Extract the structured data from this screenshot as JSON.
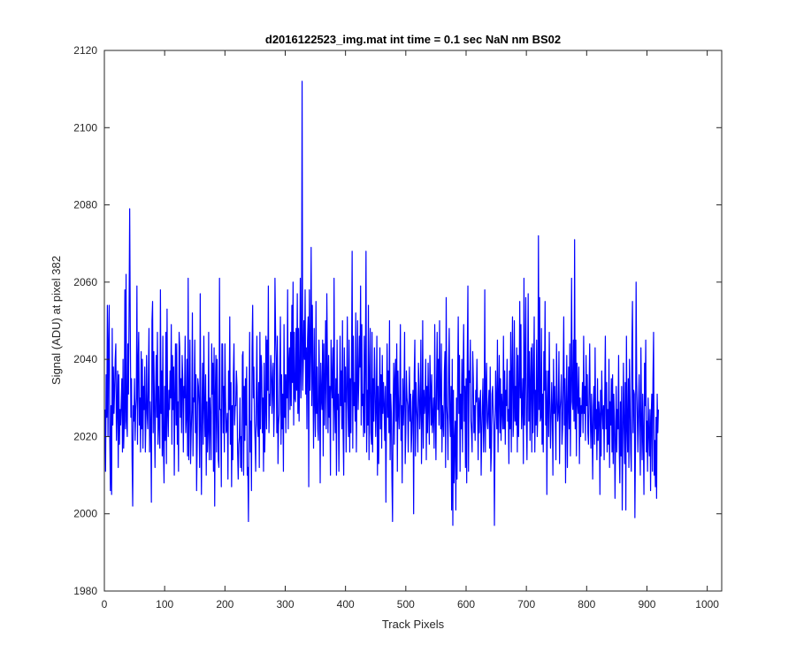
{
  "chart_data": {
    "type": "line",
    "title": "d2016122523_img.mat int time = 0.1 sec  NaN nm BS02",
    "xlabel": "Track Pixels",
    "ylabel": "Signal (ADU) at pixel 382",
    "xlim": [
      0,
      1024
    ],
    "ylim": [
      1980,
      2120
    ],
    "xticks": [
      "0",
      "100",
      "200",
      "300",
      "400",
      "500",
      "600",
      "700",
      "800",
      "900",
      "1000"
    ],
    "yticks": [
      "1980",
      "2000",
      "2020",
      "2040",
      "2060",
      "2080",
      "2100",
      "2120"
    ],
    "grid": false,
    "series": [
      {
        "color": "#0000ff",
        "x_start": 1,
        "x_step": 1,
        "values": [
          2027,
          2011,
          2036,
          2025,
          2054,
          2020,
          2044,
          2054,
          2019,
          2006,
          2028,
          2005,
          2048,
          2023,
          2038,
          2026,
          2032,
          2040,
          2044,
          2019,
          2027,
          2037,
          2012,
          2036,
          2018,
          2027,
          2023,
          2029,
          2035,
          2016,
          2040,
          2017,
          2024,
          2058,
          2022,
          2062,
          2024,
          2020,
          2044,
          2031,
          2053,
          2079,
          2048,
          2025,
          2035,
          2014,
          2002,
          2028,
          2024,
          2035,
          2019,
          2027,
          2030,
          2059,
          2018,
          2039,
          2047,
          2023,
          2030,
          2016,
          2042,
          2022,
          2040,
          2017,
          2033,
          2027,
          2038,
          2016,
          2025,
          2041,
          2026,
          2022,
          2035,
          2048,
          2016,
          2029,
          2022,
          2003,
          2050,
          2055,
          2021,
          2042,
          2028,
          2012,
          2031,
          2041,
          2025,
          2047,
          2018,
          2033,
          2023,
          2017,
          2058,
          2026,
          2037,
          2015,
          2046,
          2017,
          2008,
          2033,
          2019,
          2047,
          2013,
          2053,
          2026,
          2020,
          2032,
          2027,
          2037,
          2030,
          2049,
          2018,
          2041,
          2027,
          2038,
          2010,
          2031,
          2044,
          2023,
          2044,
          2018,
          2029,
          2011,
          2047,
          2043,
          2025,
          2035,
          2021,
          2041,
          2035,
          2016,
          2033,
          2030,
          2046,
          2021,
          2025,
          2040,
          2015,
          2061,
          2014,
          2029,
          2045,
          2013,
          2021,
          2027,
          2052,
          2015,
          2030,
          2029,
          2045,
          2021,
          2036,
          2006,
          2018,
          2035,
          2033,
          2028,
          2012,
          2057,
          2023,
          2005,
          2028,
          2039,
          2018,
          2046,
          2028,
          2020,
          2036,
          2010,
          2029,
          2016,
          2021,
          2047,
          2014,
          2030,
          2024,
          2014,
          2044,
          2031,
          2039,
          2011,
          2043,
          2002,
          2031,
          2041,
          2016,
          2040,
          2026,
          2014,
          2012,
          2061,
          2027,
          2027,
          2007,
          2044,
          2044,
          2021,
          2033,
          2016,
          2044,
          2030,
          2021,
          2022,
          2026,
          2009,
          2037,
          2027,
          2051,
          2018,
          2034,
          2007,
          2028,
          2014,
          2036,
          2044,
          2023,
          2028,
          2028,
          2037,
          2033,
          2016,
          2009,
          2018,
          2020,
          2030,
          2012,
          2020,
          2011,
          2041,
          2042,
          2010,
          2033,
          2019,
          2035,
          2023,
          2038,
          2010,
          2012,
          1998,
          2026,
          2047,
          2016,
          2024,
          2006,
          2043,
          2054,
          2030,
          2038,
          2024,
          2019,
          2011,
          2031,
          2046,
          2023,
          2020,
          2034,
          2012,
          2047,
          2022,
          2041,
          2038,
          2021,
          2030,
          2011,
          2039,
          2016,
          2026,
          2046,
          2022,
          2045,
          2032,
          2059,
          2021,
          2031,
          2028,
          2041,
          2038,
          2026,
          2034,
          2039,
          2020,
          2028,
          2061,
          2047,
          2040,
          2021,
          2046,
          2013,
          2023,
          2026,
          2038,
          2051,
          2018,
          2036,
          2022,
          2031,
          2011,
          2049,
          2025,
          2036,
          2021,
          2036,
          2030,
          2058,
          2022,
          2039,
          2043,
          2027,
          2047,
          2028,
          2054,
          2034,
          2060,
          2023,
          2047,
          2030,
          2029,
          2048,
          2032,
          2057,
          2026,
          2048,
          2024,
          2037,
          2061,
          2030,
          2040,
          2112,
          2032,
          2039,
          2050,
          2040,
          2058,
          2031,
          2043,
          2022,
          2045,
          2051,
          2007,
          2058,
          2032,
          2043,
          2069,
          2028,
          2054,
          2034,
          2017,
          2048,
          2029,
          2020,
          2055,
          2026,
          2038,
          2022,
          2019,
          2045,
          2033,
          2008,
          2039,
          2030,
          2027,
          2045,
          2015,
          2044,
          2023,
          2034,
          2050,
          2022,
          2057,
          2039,
          2021,
          2041,
          2025,
          2033,
          2010,
          2045,
          2034,
          2030,
          2043,
          2019,
          2061,
          2028,
          2021,
          2035,
          2010,
          2045,
          2027,
          2031,
          2011,
          2027,
          2046,
          2028,
          2037,
          2022,
          2050,
          2021,
          2010,
          2043,
          2029,
          2038,
          2016,
          2032,
          2051,
          2029,
          2020,
          2045,
          2016,
          2035,
          2021,
          2038,
          2068,
          2017,
          2046,
          2028,
          2034,
          2024,
          2052,
          2016,
          2032,
          2050,
          2027,
          2034,
          2046,
          2038,
          2059,
          2023,
          2049,
          2028,
          2031,
          2020,
          2046,
          2021,
          2040,
          2068,
          2016,
          2032,
          2023,
          2054,
          2014,
          2034,
          2048,
          2021,
          2018,
          2047,
          2016,
          2035,
          2024,
          2043,
          2033,
          2020,
          2028,
          2046,
          2010,
          2033,
          2013,
          2029,
          2043,
          2022,
          2036,
          2017,
          2041,
          2026,
          2034,
          2028,
          2019,
          2033,
          2003,
          2027,
          2044,
          2025,
          2037,
          2021,
          2050,
          2014,
          2031,
          2026,
          2009,
          1998,
          2028,
          2039,
          2018,
          2035,
          2040,
          2024,
          2044,
          2011,
          2037,
          2027,
          2022,
          2031,
          2049,
          2019,
          2028,
          2008,
          2035,
          2023,
          2030,
          2047,
          2013,
          2021,
          2037,
          2030,
          2028,
          2016,
          2028,
          2038,
          2024,
          2031,
          2016,
          2021,
          2029,
          2032,
          2000,
          2036,
          2045,
          2015,
          2034,
          2028,
          2024,
          2016,
          2039,
          2033,
          2022,
          2027,
          2045,
          2013,
          2024,
          2050,
          2017,
          2032,
          2026,
          2029,
          2040,
          2014,
          2033,
          2021,
          2039,
          2027,
          2018,
          2041,
          2033,
          2023,
          2036,
          2021,
          2025,
          2030,
          2017,
          2049,
          2026,
          2014,
          2034,
          2047,
          2027,
          2040,
          2023,
          2050,
          2031,
          2022,
          2044,
          2016,
          2028,
          2024,
          2020,
          2037,
          2042,
          2012,
          2056,
          2028,
          2024,
          2014,
          2038,
          2048,
          2025,
          2020,
          2033,
          2001,
          2040,
          1997,
          2032,
          2008,
          2019,
          2024,
          2001,
          2030,
          2009,
          2035,
          2051,
          2026,
          2041,
          2011,
          2031,
          2022,
          2040,
          2016,
          2036,
          2049,
          2024,
          2033,
          2012,
          2035,
          2008,
          2041,
          2059,
          2011,
          2037,
          2034,
          2045,
          2024,
          2021,
          2016,
          2042,
          2035,
          2021,
          2028,
          2019,
          2032,
          2029,
          2040,
          2028,
          2014,
          2030,
          2021,
          2029,
          2032,
          2010,
          2021,
          2028,
          2035,
          2016,
          2023,
          2058,
          2016,
          2032,
          2039,
          2024,
          2022,
          2028,
          2032,
          2017,
          2038,
          2011,
          2016,
          2031,
          2033,
          2026,
          2023,
          1997,
          2021,
          2037,
          2028,
          2022,
          2045,
          2016,
          2030,
          2041,
          2021,
          2035,
          2019,
          2031,
          2027,
          2022,
          2046,
          2022,
          2037,
          2018,
          2032,
          2028,
          2040,
          2024,
          2027,
          2013,
          2037,
          2022,
          2047,
          2016,
          2036,
          2051,
          2020,
          2025,
          2050,
          2024,
          2033,
          2023,
          2043,
          2016,
          2041,
          2020,
          2031,
          2055,
          2030,
          2049,
          2022,
          2028,
          2035,
          2013,
          2061,
          2023,
          2037,
          2056,
          2024,
          2014,
          2034,
          2057,
          2024,
          2042,
          2019,
          2034,
          2043,
          2016,
          2044,
          2021,
          2034,
          2051,
          2016,
          2032,
          2023,
          2045,
          2020,
          2026,
          2072,
          2027,
          2056,
          2024,
          2025,
          2048,
          2018,
          2031,
          2016,
          2042,
          2032,
          2055,
          2023,
          2037,
          2005,
          2029,
          2037,
          2020,
          2047,
          2030,
          2017,
          2024,
          2034,
          2027,
          2010,
          2040,
          2026,
          2033,
          2025,
          2014,
          2044,
          2030,
          2024,
          2027,
          2042,
          2013,
          2027,
          2030,
          2036,
          2018,
          2022,
          2035,
          2051,
          2023,
          2035,
          2008,
          2028,
          2041,
          2012,
          2027,
          2038,
          2022,
          2044,
          2015,
          2033,
          2061,
          2029,
          2027,
          2045,
          2024,
          2071,
          2022,
          2045,
          2015,
          2039,
          2029,
          2026,
          2038,
          2013,
          2030,
          2020,
          2028,
          2026,
          2034,
          2021,
          2046,
          2026,
          2033,
          2019,
          2041,
          2028,
          2036,
          2021,
          2018,
          2032,
          2044,
          2026,
          2017,
          2031,
          2022,
          2009,
          2028,
          2033,
          2018,
          2043,
          2022,
          2027,
          2014,
          2035,
          2019,
          2029,
          2026,
          2005,
          2032,
          2015,
          2037,
          2027,
          2022,
          2028,
          2014,
          2031,
          2046,
          2022,
          2034,
          2016,
          2027,
          2018,
          2040,
          2012,
          2029,
          2023,
          2035,
          2016,
          2036,
          2013,
          2031,
          2024,
          2004,
          2019,
          2033,
          2016,
          2027,
          2022,
          2041,
          2017,
          2008,
          2029,
          2015,
          2033,
          2001,
          2020,
          2039,
          2023,
          2013,
          2034,
          2001,
          2046,
          2023,
          2016,
          2035,
          2012,
          2040,
          2028,
          2016,
          2011,
          2043,
          2055,
          2021,
          2032,
          2031,
          1999,
          2018,
          2060,
          2034,
          2025,
          2016,
          2028,
          2036,
          2021,
          2010,
          2043,
          2025,
          2014,
          2031,
          2019,
          2005,
          2039,
          2028,
          2045,
          2016,
          2024,
          2011,
          2030,
          2021,
          2015,
          2027,
          2006,
          2025,
          2031,
          2011,
          2035,
          2047,
          2010,
          2019,
          2007,
          2025,
          2004,
          2031,
          2021,
          2027
        ]
      }
    ]
  }
}
